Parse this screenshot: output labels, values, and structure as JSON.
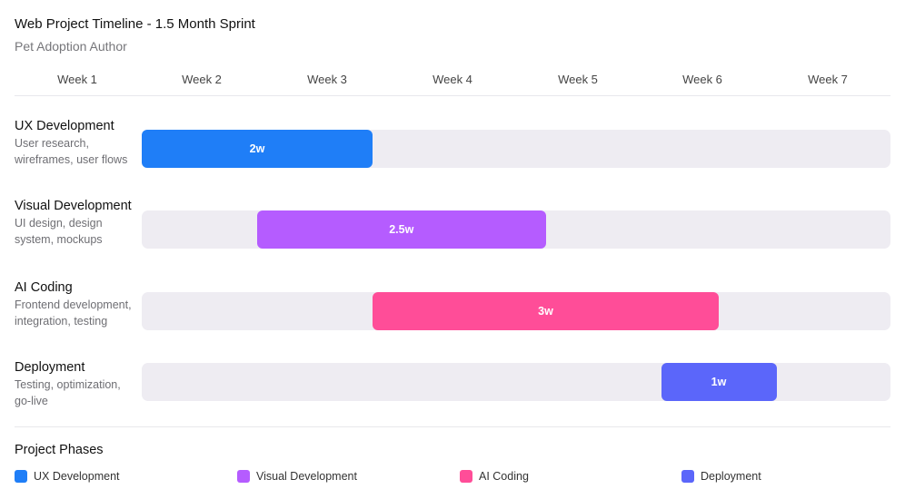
{
  "header": {
    "title": "Web Project Timeline - 1.5 Month Sprint",
    "subtitle": "Pet Adoption Author"
  },
  "chart_data": {
    "type": "gantt",
    "title": "Web Project Timeline - 1.5 Month Sprint",
    "subtitle": "Pet Adoption Author",
    "weeks": [
      "Week 1",
      "Week 2",
      "Week 3",
      "Week 4",
      "Week 5",
      "Week 6",
      "Week 7"
    ],
    "x_range_weeks": [
      1,
      7.5
    ],
    "tasks": [
      {
        "name": "UX Development",
        "description": "User research, wireframes, user flows",
        "start_week": 2,
        "duration_weeks": 2,
        "label": "2w",
        "color": "#1f7ef7"
      },
      {
        "name": "Visual Development",
        "description": "UI design, design system, mockups",
        "start_week": 3,
        "duration_weeks": 2.5,
        "label": "2.5w",
        "color": "#b55cff"
      },
      {
        "name": "AI Coding",
        "description": "Frontend development, integration, testing",
        "start_week": 4,
        "duration_weeks": 3,
        "label": "3w",
        "color": "#ff4d98"
      },
      {
        "name": "Deployment",
        "description": "Testing, optimization, go-live",
        "start_week": 6.5,
        "duration_weeks": 1,
        "label": "1w",
        "color": "#5b66fa"
      }
    ],
    "legend_title": "Project Phases",
    "legend": [
      "UX Development",
      "Visual Development",
      "AI Coding",
      "Deployment"
    ]
  }
}
